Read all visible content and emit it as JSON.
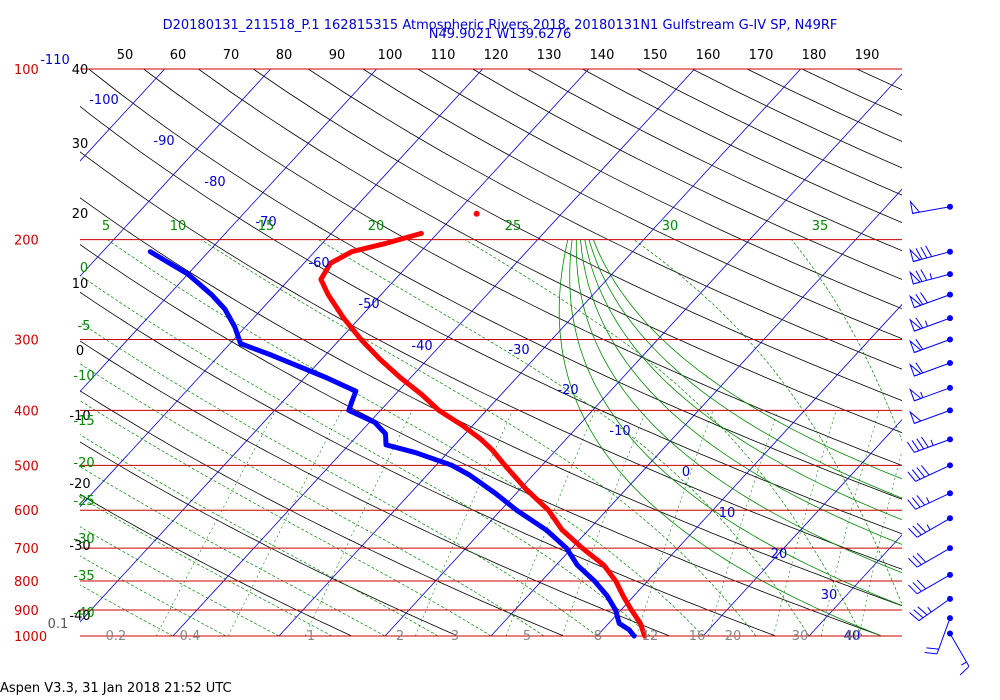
{
  "title_line1": "D20180131_211518_P.1 162815315 Atmospheric Rivers 2018, 20180131N1 Gulfstream G-IV SP, N49RF",
  "title_line2": "N49.9021 W139.6276",
  "footer": "Aspen V3.3, 31 Jan 2018  21:52 UTC",
  "colors": {
    "temperature": "#ff0000",
    "dewpoint": "#0000ff",
    "isobar": "#cc0000",
    "isotherm": "#0000cc",
    "mixing_ratio": "#008800",
    "axis_text": "#000000"
  },
  "chart_data": {
    "type": "line",
    "chart_kind": "skew-T log-P sounding",
    "pressure_axis": {
      "scale": "log",
      "range_hPa": [
        1000,
        100
      ],
      "isobars": [
        1000,
        900,
        800,
        700,
        600,
        500,
        400,
        300,
        200,
        100
      ],
      "labels": [
        "1000",
        "900",
        "800",
        "700",
        "600",
        "500",
        "400",
        "300",
        "200",
        "100"
      ]
    },
    "top_scale_labels": [
      "50",
      "60",
      "70",
      "80",
      "90",
      "100",
      "110",
      "120",
      "130",
      "140",
      "150",
      "160",
      "170",
      "180",
      "190"
    ],
    "left_temp_labels": [
      "40",
      "30",
      "20",
      "10",
      "0",
      "-10",
      "-20",
      "-30",
      "-40"
    ],
    "isotherm_labels": [
      "-110",
      "-100",
      "-90",
      "-80",
      "-70",
      "-60",
      "-50",
      "-40",
      "-30",
      "-20",
      "-10",
      "0",
      "10",
      "20",
      "30",
      "40"
    ],
    "theta_e_labels": [
      "5",
      "10",
      "15",
      "20",
      "25",
      "30",
      "35"
    ],
    "left_green_labels": [
      "0",
      "-5",
      "-10",
      "-15",
      "-20",
      "-25",
      "-30",
      "-35",
      "-40"
    ],
    "mixing_ratio_labels": [
      "0.1",
      "0.2",
      "0.4",
      "1",
      "2",
      "3",
      "5",
      "8",
      "12",
      "16",
      "20",
      "30",
      "40"
    ],
    "series": [
      {
        "name": "Temperature",
        "points": [
          {
            "p": 1000,
            "t": 4.5
          },
          {
            "p": 950,
            "t": 3.0
          },
          {
            "p": 900,
            "t": 1.0
          },
          {
            "p": 850,
            "t": -1.0
          },
          {
            "p": 800,
            "t": -3.0
          },
          {
            "p": 750,
            "t": -5.5
          },
          {
            "p": 700,
            "t": -9.0
          },
          {
            "p": 650,
            "t": -12.5
          },
          {
            "p": 600,
            "t": -15.5
          },
          {
            "p": 550,
            "t": -19.5
          },
          {
            "p": 500,
            "t": -23.5
          },
          {
            "p": 470,
            "t": -26.0
          },
          {
            "p": 450,
            "t": -28.0
          },
          {
            "p": 425,
            "t": -31.0
          },
          {
            "p": 400,
            "t": -34.5
          },
          {
            "p": 375,
            "t": -37.5
          },
          {
            "p": 350,
            "t": -41.0
          },
          {
            "p": 325,
            "t": -44.5
          },
          {
            "p": 300,
            "t": -48.0
          },
          {
            "p": 275,
            "t": -51.5
          },
          {
            "p": 250,
            "t": -55.0
          },
          {
            "p": 235,
            "t": -57.0
          },
          {
            "p": 220,
            "t": -57.5
          },
          {
            "p": 210,
            "t": -56.5
          },
          {
            "p": 203,
            "t": -54.0
          },
          {
            "p": 195,
            "t": -51.5
          }
        ]
      },
      {
        "name": "Dewpoint",
        "points": [
          {
            "p": 1000,
            "t": 3.5
          },
          {
            "p": 975,
            "t": 2.5
          },
          {
            "p": 950,
            "t": 1.0
          },
          {
            "p": 900,
            "t": -0.5
          },
          {
            "p": 850,
            "t": -2.5
          },
          {
            "p": 800,
            "t": -5.0
          },
          {
            "p": 750,
            "t": -8.0
          },
          {
            "p": 700,
            "t": -10.5
          },
          {
            "p": 650,
            "t": -14.0
          },
          {
            "p": 600,
            "t": -18.5
          },
          {
            "p": 560,
            "t": -22.0
          },
          {
            "p": 520,
            "t": -26.0
          },
          {
            "p": 500,
            "t": -28.5
          },
          {
            "p": 475,
            "t": -33.0
          },
          {
            "p": 460,
            "t": -36.5
          },
          {
            "p": 440,
            "t": -37.5
          },
          {
            "p": 420,
            "t": -39.5
          },
          {
            "p": 400,
            "t": -43.0
          },
          {
            "p": 385,
            "t": -43.5
          },
          {
            "p": 370,
            "t": -44.0
          },
          {
            "p": 350,
            "t": -48.0
          },
          {
            "p": 320,
            "t": -55.0
          },
          {
            "p": 305,
            "t": -59.0
          },
          {
            "p": 285,
            "t": -61.0
          },
          {
            "p": 265,
            "t": -63.5
          },
          {
            "p": 250,
            "t": -66.0
          },
          {
            "p": 230,
            "t": -70.0
          },
          {
            "p": 210,
            "t": -75.5
          }
        ]
      }
    ],
    "isolated_point": {
      "p": 180,
      "t": -48.0
    },
    "wind_barbs": {
      "pressures": [
        175,
        210,
        230,
        250,
        275,
        300,
        330,
        365,
        400,
        450,
        500,
        560,
        620,
        700,
        780,
        860,
        930,
        990
      ],
      "speeds_kt": [
        50,
        80,
        75,
        70,
        65,
        60,
        60,
        55,
        50,
        45,
        40,
        35,
        35,
        30,
        30,
        35,
        20,
        15
      ],
      "directions_deg": [
        260,
        255,
        255,
        250,
        250,
        250,
        250,
        250,
        250,
        250,
        245,
        245,
        240,
        240,
        240,
        235,
        200,
        150
      ]
    }
  }
}
